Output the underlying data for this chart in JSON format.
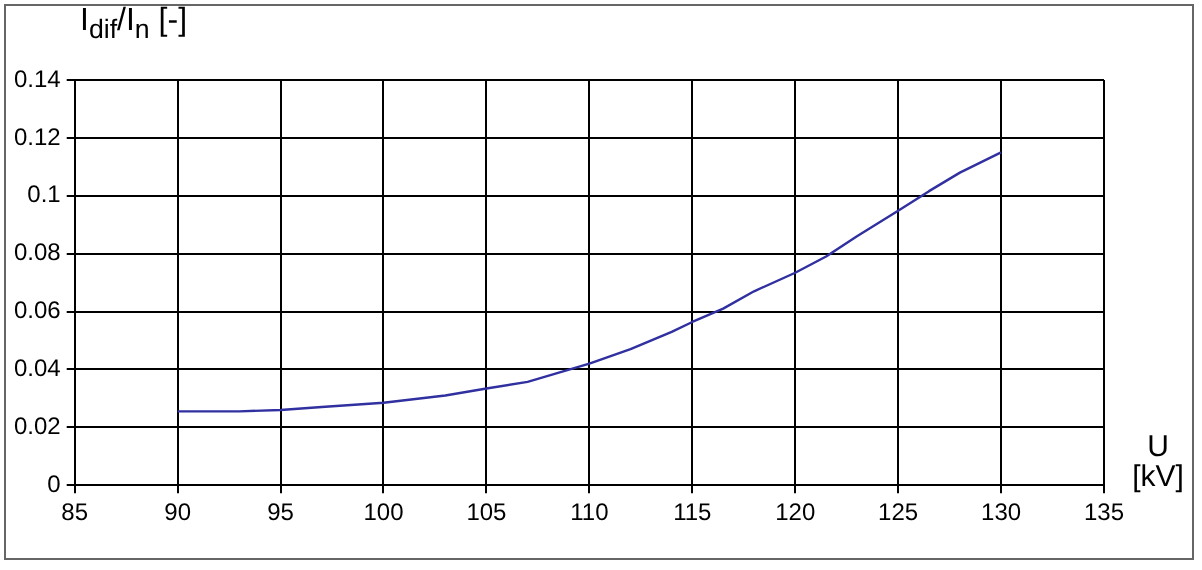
{
  "chart_data": {
    "type": "line",
    "xlabel": "U [kV]",
    "ylabel": "I$_{dif}$/I$_{n}$ [-]",
    "x": [
      90,
      93,
      95,
      97,
      100,
      103,
      105,
      107,
      110,
      112,
      114,
      115,
      116.5,
      118,
      120,
      121.5,
      123,
      125,
      126.5,
      128,
      130
    ],
    "series": [
      {
        "color": "#3030a0",
        "values": [
          0.0255,
          0.0255,
          0.026,
          0.027,
          0.0285,
          0.031,
          0.0334,
          0.0357,
          0.042,
          0.047,
          0.053,
          0.0564,
          0.061,
          0.067,
          0.0734,
          0.079,
          0.086,
          0.0948,
          0.1016,
          0.108,
          0.115
        ]
      }
    ],
    "xlim": [
      85,
      135
    ],
    "xticks": [
      85,
      90,
      95,
      100,
      105,
      110,
      115,
      120,
      125,
      130,
      135
    ],
    "ylim": [
      0,
      0.14
    ],
    "yticks": [
      0,
      0.02,
      0.04,
      0.06,
      0.08,
      0.1,
      0.12,
      0.14
    ],
    "grid": true,
    "legend": false,
    "marker": "none",
    "line_style": "solid"
  }
}
